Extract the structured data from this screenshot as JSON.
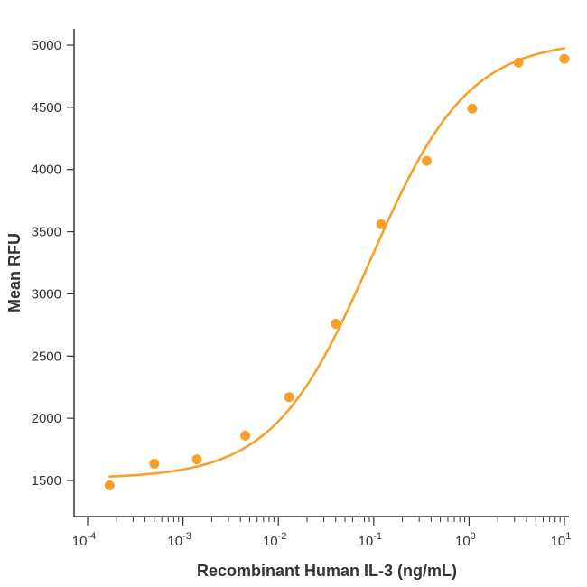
{
  "chart_data": {
    "type": "scatter",
    "title": "",
    "xlabel": "Recombinant Human IL-3 (ng/mL)",
    "ylabel": "Mean RFU",
    "x_scale": "log",
    "xlim": [
      0.0001,
      10
    ],
    "ylim": [
      1250,
      5150
    ],
    "x_ticks": [
      {
        "value": 0.0001,
        "base": "10",
        "exp": "-4"
      },
      {
        "value": 0.001,
        "base": "10",
        "exp": "-3"
      },
      {
        "value": 0.01,
        "base": "10",
        "exp": "-2"
      },
      {
        "value": 0.1,
        "base": "10",
        "exp": "-1"
      },
      {
        "value": 1,
        "base": "10",
        "exp": "0"
      },
      {
        "value": 10,
        "base": "10",
        "exp": "1"
      }
    ],
    "y_ticks": [
      1500,
      2000,
      2500,
      3000,
      3500,
      4000,
      4500,
      5000
    ],
    "grid": false,
    "color": "#F7A02A",
    "series": [
      {
        "points": [
          {
            "x": 0.00017,
            "y": 1460
          },
          {
            "x": 0.0005,
            "y": 1635
          },
          {
            "x": 0.0014,
            "y": 1670
          },
          {
            "x": 0.0045,
            "y": 1860
          },
          {
            "x": 0.013,
            "y": 2170
          },
          {
            "x": 0.04,
            "y": 2760
          },
          {
            "x": 0.12,
            "y": 3560
          },
          {
            "x": 0.36,
            "y": 4070
          },
          {
            "x": 1.08,
            "y": 4490
          },
          {
            "x": 3.3,
            "y": 4860
          },
          {
            "x": 10,
            "y": 4890
          }
        ],
        "fit": {
          "model": "4PL",
          "bottom": 1515,
          "top": 5040,
          "ec50": 0.093,
          "hill": 0.85
        }
      }
    ]
  }
}
